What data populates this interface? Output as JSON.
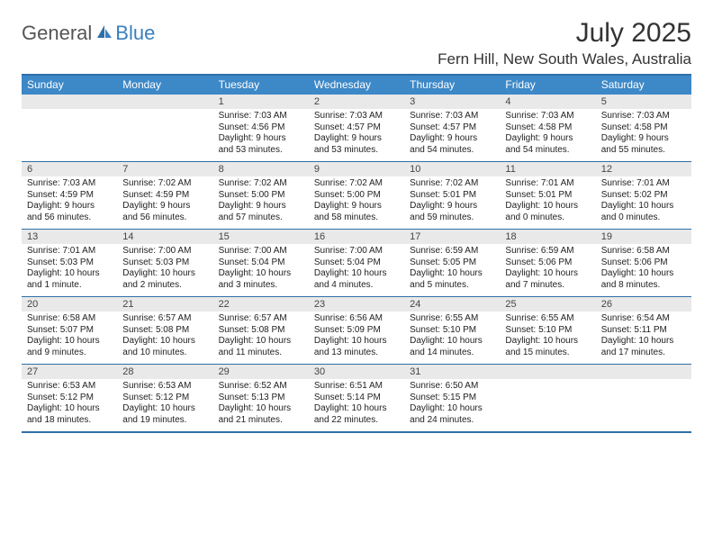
{
  "brand": {
    "part1": "General",
    "part2": "Blue"
  },
  "title": "July 2025",
  "location": "Fern Hill, New South Wales, Australia",
  "colors": {
    "header_bar": "#3d88c7",
    "border": "#2f6fa8",
    "daynum_bg": "#e9e9e9",
    "logo_blue": "#3a7fc0"
  },
  "days_of_week": [
    "Sunday",
    "Monday",
    "Tuesday",
    "Wednesday",
    "Thursday",
    "Friday",
    "Saturday"
  ],
  "weeks": [
    [
      {
        "n": "",
        "sr": "",
        "ss": "",
        "dl": ""
      },
      {
        "n": "",
        "sr": "",
        "ss": "",
        "dl": ""
      },
      {
        "n": "1",
        "sr": "Sunrise: 7:03 AM",
        "ss": "Sunset: 4:56 PM",
        "dl": "Daylight: 9 hours and 53 minutes."
      },
      {
        "n": "2",
        "sr": "Sunrise: 7:03 AM",
        "ss": "Sunset: 4:57 PM",
        "dl": "Daylight: 9 hours and 53 minutes."
      },
      {
        "n": "3",
        "sr": "Sunrise: 7:03 AM",
        "ss": "Sunset: 4:57 PM",
        "dl": "Daylight: 9 hours and 54 minutes."
      },
      {
        "n": "4",
        "sr": "Sunrise: 7:03 AM",
        "ss": "Sunset: 4:58 PM",
        "dl": "Daylight: 9 hours and 54 minutes."
      },
      {
        "n": "5",
        "sr": "Sunrise: 7:03 AM",
        "ss": "Sunset: 4:58 PM",
        "dl": "Daylight: 9 hours and 55 minutes."
      }
    ],
    [
      {
        "n": "6",
        "sr": "Sunrise: 7:03 AM",
        "ss": "Sunset: 4:59 PM",
        "dl": "Daylight: 9 hours and 56 minutes."
      },
      {
        "n": "7",
        "sr": "Sunrise: 7:02 AM",
        "ss": "Sunset: 4:59 PM",
        "dl": "Daylight: 9 hours and 56 minutes."
      },
      {
        "n": "8",
        "sr": "Sunrise: 7:02 AM",
        "ss": "Sunset: 5:00 PM",
        "dl": "Daylight: 9 hours and 57 minutes."
      },
      {
        "n": "9",
        "sr": "Sunrise: 7:02 AM",
        "ss": "Sunset: 5:00 PM",
        "dl": "Daylight: 9 hours and 58 minutes."
      },
      {
        "n": "10",
        "sr": "Sunrise: 7:02 AM",
        "ss": "Sunset: 5:01 PM",
        "dl": "Daylight: 9 hours and 59 minutes."
      },
      {
        "n": "11",
        "sr": "Sunrise: 7:01 AM",
        "ss": "Sunset: 5:01 PM",
        "dl": "Daylight: 10 hours and 0 minutes."
      },
      {
        "n": "12",
        "sr": "Sunrise: 7:01 AM",
        "ss": "Sunset: 5:02 PM",
        "dl": "Daylight: 10 hours and 0 minutes."
      }
    ],
    [
      {
        "n": "13",
        "sr": "Sunrise: 7:01 AM",
        "ss": "Sunset: 5:03 PM",
        "dl": "Daylight: 10 hours and 1 minute."
      },
      {
        "n": "14",
        "sr": "Sunrise: 7:00 AM",
        "ss": "Sunset: 5:03 PM",
        "dl": "Daylight: 10 hours and 2 minutes."
      },
      {
        "n": "15",
        "sr": "Sunrise: 7:00 AM",
        "ss": "Sunset: 5:04 PM",
        "dl": "Daylight: 10 hours and 3 minutes."
      },
      {
        "n": "16",
        "sr": "Sunrise: 7:00 AM",
        "ss": "Sunset: 5:04 PM",
        "dl": "Daylight: 10 hours and 4 minutes."
      },
      {
        "n": "17",
        "sr": "Sunrise: 6:59 AM",
        "ss": "Sunset: 5:05 PM",
        "dl": "Daylight: 10 hours and 5 minutes."
      },
      {
        "n": "18",
        "sr": "Sunrise: 6:59 AM",
        "ss": "Sunset: 5:06 PM",
        "dl": "Daylight: 10 hours and 7 minutes."
      },
      {
        "n": "19",
        "sr": "Sunrise: 6:58 AM",
        "ss": "Sunset: 5:06 PM",
        "dl": "Daylight: 10 hours and 8 minutes."
      }
    ],
    [
      {
        "n": "20",
        "sr": "Sunrise: 6:58 AM",
        "ss": "Sunset: 5:07 PM",
        "dl": "Daylight: 10 hours and 9 minutes."
      },
      {
        "n": "21",
        "sr": "Sunrise: 6:57 AM",
        "ss": "Sunset: 5:08 PM",
        "dl": "Daylight: 10 hours and 10 minutes."
      },
      {
        "n": "22",
        "sr": "Sunrise: 6:57 AM",
        "ss": "Sunset: 5:08 PM",
        "dl": "Daylight: 10 hours and 11 minutes."
      },
      {
        "n": "23",
        "sr": "Sunrise: 6:56 AM",
        "ss": "Sunset: 5:09 PM",
        "dl": "Daylight: 10 hours and 13 minutes."
      },
      {
        "n": "24",
        "sr": "Sunrise: 6:55 AM",
        "ss": "Sunset: 5:10 PM",
        "dl": "Daylight: 10 hours and 14 minutes."
      },
      {
        "n": "25",
        "sr": "Sunrise: 6:55 AM",
        "ss": "Sunset: 5:10 PM",
        "dl": "Daylight: 10 hours and 15 minutes."
      },
      {
        "n": "26",
        "sr": "Sunrise: 6:54 AM",
        "ss": "Sunset: 5:11 PM",
        "dl": "Daylight: 10 hours and 17 minutes."
      }
    ],
    [
      {
        "n": "27",
        "sr": "Sunrise: 6:53 AM",
        "ss": "Sunset: 5:12 PM",
        "dl": "Daylight: 10 hours and 18 minutes."
      },
      {
        "n": "28",
        "sr": "Sunrise: 6:53 AM",
        "ss": "Sunset: 5:12 PM",
        "dl": "Daylight: 10 hours and 19 minutes."
      },
      {
        "n": "29",
        "sr": "Sunrise: 6:52 AM",
        "ss": "Sunset: 5:13 PM",
        "dl": "Daylight: 10 hours and 21 minutes."
      },
      {
        "n": "30",
        "sr": "Sunrise: 6:51 AM",
        "ss": "Sunset: 5:14 PM",
        "dl": "Daylight: 10 hours and 22 minutes."
      },
      {
        "n": "31",
        "sr": "Sunrise: 6:50 AM",
        "ss": "Sunset: 5:15 PM",
        "dl": "Daylight: 10 hours and 24 minutes."
      },
      {
        "n": "",
        "sr": "",
        "ss": "",
        "dl": ""
      },
      {
        "n": "",
        "sr": "",
        "ss": "",
        "dl": ""
      }
    ]
  ]
}
